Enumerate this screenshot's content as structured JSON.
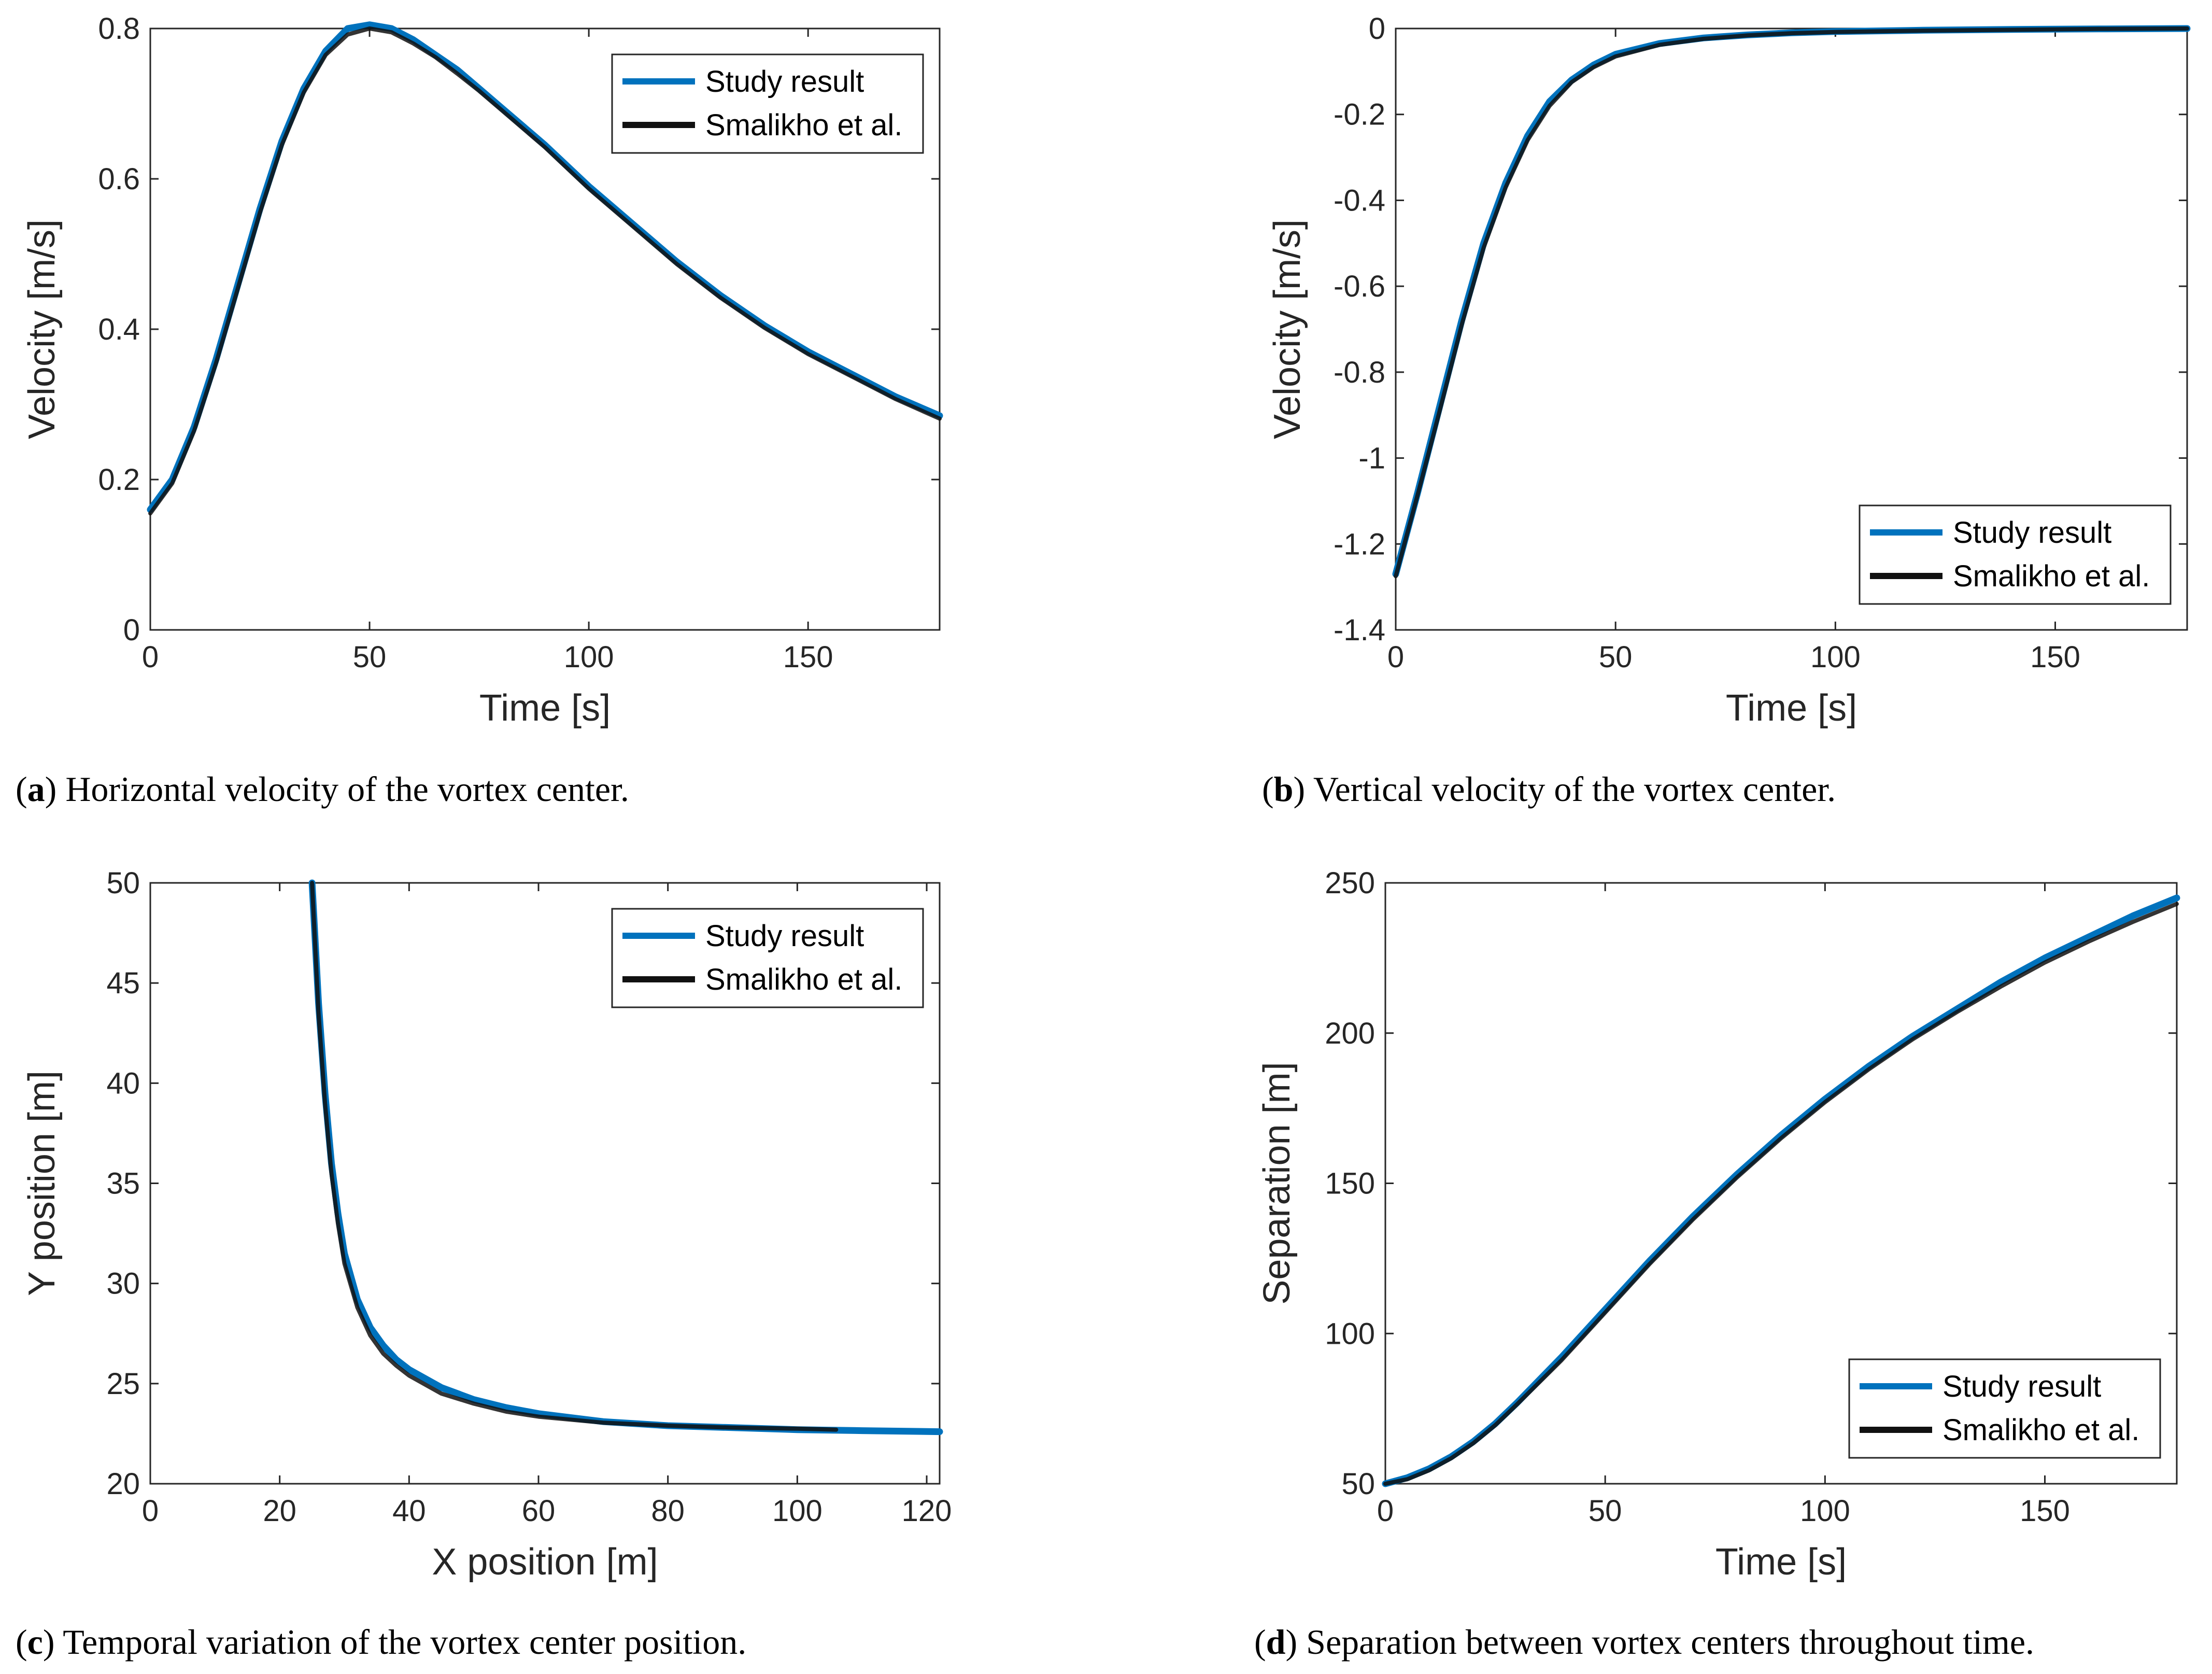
{
  "colors": {
    "study": "#0072BD",
    "smalikho": "#111111",
    "axis": "#262626"
  },
  "chart_data": [
    {
      "id": "a",
      "type": "line",
      "caption_letter": "a",
      "caption_text": " Horizontal velocity of the vortex center.",
      "xlabel": "Time [s]",
      "ylabel": "Velocity [m/s]",
      "xlim": [
        0,
        180
      ],
      "ylim": [
        0,
        0.8
      ],
      "xticks": [
        0,
        50,
        100,
        150
      ],
      "xtick_labels": [
        "0",
        "50",
        "100",
        "150"
      ],
      "yticks": [
        0,
        0.2,
        0.4,
        0.6,
        0.8
      ],
      "ytick_labels": [
        "0",
        "0.2",
        "0.4",
        "0.6",
        "0.8"
      ],
      "legend": [
        "Study result",
        "Smalikho et al."
      ],
      "legend_position": "top-right",
      "series": [
        {
          "name": "Study result",
          "x": [
            0,
            5,
            10,
            15,
            20,
            25,
            30,
            35,
            40,
            45,
            50,
            55,
            60,
            65,
            70,
            75,
            80,
            90,
            100,
            110,
            120,
            130,
            140,
            150,
            160,
            170,
            180
          ],
          "y": [
            0.16,
            0.2,
            0.27,
            0.36,
            0.46,
            0.56,
            0.65,
            0.72,
            0.77,
            0.8,
            0.805,
            0.8,
            0.785,
            0.765,
            0.745,
            0.72,
            0.695,
            0.645,
            0.59,
            0.54,
            0.49,
            0.445,
            0.405,
            0.37,
            0.34,
            0.31,
            0.285
          ]
        },
        {
          "name": "Smalikho et al.",
          "x": [
            0,
            5,
            10,
            15,
            20,
            25,
            30,
            35,
            40,
            45,
            50,
            55,
            60,
            65,
            70,
            75,
            80,
            90,
            100,
            110,
            120,
            130,
            140,
            150,
            160,
            170,
            180
          ],
          "y": [
            0.155,
            0.195,
            0.265,
            0.355,
            0.455,
            0.555,
            0.645,
            0.715,
            0.765,
            0.792,
            0.8,
            0.795,
            0.78,
            0.762,
            0.74,
            0.717,
            0.692,
            0.642,
            0.587,
            0.537,
            0.487,
            0.442,
            0.402,
            0.367,
            0.337,
            0.307,
            0.281
          ]
        }
      ]
    },
    {
      "id": "b",
      "type": "line",
      "caption_letter": "b",
      "caption_text": " Vertical velocity of the vortex center.",
      "xlabel": "Time [s]",
      "ylabel": "Velocity [m/s]",
      "xlim": [
        0,
        180
      ],
      "ylim": [
        -1.4,
        0
      ],
      "xticks": [
        0,
        50,
        100,
        150
      ],
      "xtick_labels": [
        "0",
        "50",
        "100",
        "150"
      ],
      "yticks": [
        -1.4,
        -1.2,
        -1,
        -0.8,
        -0.6,
        -0.4,
        -0.2,
        0
      ],
      "ytick_labels": [
        "-1.4",
        "-1.2",
        "-1",
        "-0.8",
        "-0.6",
        "-0.4",
        "-0.2",
        "0"
      ],
      "legend": [
        "Study result",
        "Smalikho et al."
      ],
      "legend_position": "bottom-right",
      "series": [
        {
          "name": "Study result",
          "x": [
            0,
            5,
            10,
            15,
            20,
            25,
            30,
            35,
            40,
            45,
            50,
            60,
            70,
            80,
            90,
            100,
            120,
            140,
            160,
            180
          ],
          "y": [
            -1.27,
            -1.08,
            -0.88,
            -0.68,
            -0.5,
            -0.36,
            -0.25,
            -0.17,
            -0.12,
            -0.085,
            -0.06,
            -0.035,
            -0.022,
            -0.015,
            -0.01,
            -0.007,
            -0.004,
            -0.002,
            -0.001,
            0
          ]
        },
        {
          "name": "Smalikho et al.",
          "x": [
            0,
            5,
            10,
            15,
            20,
            25,
            30,
            35,
            40,
            45,
            50,
            60,
            70,
            80,
            90,
            100,
            120,
            140,
            160,
            180
          ],
          "y": [
            -1.275,
            -1.085,
            -0.89,
            -0.69,
            -0.51,
            -0.37,
            -0.26,
            -0.18,
            -0.125,
            -0.09,
            -0.065,
            -0.038,
            -0.024,
            -0.016,
            -0.011,
            -0.008,
            -0.005,
            -0.003,
            -0.001,
            0
          ]
        }
      ]
    },
    {
      "id": "c",
      "type": "line",
      "caption_letter": "c",
      "caption_text": " Temporal variation of the vortex center position.",
      "xlabel": "X position [m]",
      "ylabel": "Y position [m]",
      "xlim": [
        0,
        122
      ],
      "ylim": [
        20,
        50
      ],
      "xticks": [
        0,
        20,
        40,
        60,
        80,
        100,
        120
      ],
      "xtick_labels": [
        "0",
        "20",
        "40",
        "60",
        "80",
        "100",
        "120"
      ],
      "yticks": [
        20,
        25,
        30,
        35,
        40,
        45,
        50
      ],
      "ytick_labels": [
        "20",
        "25",
        "30",
        "35",
        "40",
        "45",
        "50"
      ],
      "legend": [
        "Study result",
        "Smalikho et al."
      ],
      "legend_position": "top-right",
      "series": [
        {
          "name": "Study result",
          "x": [
            25,
            26,
            27,
            28,
            29,
            30,
            32,
            34,
            36,
            38,
            40,
            45,
            50,
            55,
            60,
            70,
            80,
            90,
            100,
            110,
            122
          ],
          "y": [
            50,
            44,
            39.5,
            36,
            33.5,
            31.5,
            29.2,
            27.8,
            26.9,
            26.2,
            25.7,
            24.8,
            24.2,
            23.8,
            23.5,
            23.1,
            22.9,
            22.8,
            22.7,
            22.65,
            22.6
          ]
        },
        {
          "name": "Smalikho et al.",
          "x": [
            25,
            26,
            27,
            28,
            29,
            30,
            32,
            34,
            36,
            38,
            40,
            45,
            50,
            55,
            60,
            70,
            80,
            90,
            100,
            106
          ],
          "y": [
            50,
            43.5,
            39,
            35.5,
            33,
            31,
            28.8,
            27.4,
            26.5,
            25.9,
            25.4,
            24.5,
            24,
            23.6,
            23.35,
            23.05,
            22.9,
            22.8,
            22.75,
            22.7
          ]
        }
      ]
    },
    {
      "id": "d",
      "type": "line",
      "caption_letter": "d",
      "caption_text": " Separation between vortex centers throughout time.",
      "xlabel": "Time [s]",
      "ylabel": "Separation [m]",
      "xlim": [
        0,
        180
      ],
      "ylim": [
        50,
        250
      ],
      "xticks": [
        0,
        50,
        100,
        150
      ],
      "xtick_labels": [
        "0",
        "50",
        "100",
        "150"
      ],
      "yticks": [
        50,
        100,
        150,
        200,
        250
      ],
      "ytick_labels": [
        "50",
        "100",
        "150",
        "200",
        "250"
      ],
      "legend": [
        "Study result",
        "Smalikho et al."
      ],
      "legend_position": "bottom-right",
      "series": [
        {
          "name": "Study result",
          "x": [
            0,
            5,
            10,
            15,
            20,
            25,
            30,
            40,
            50,
            60,
            70,
            80,
            90,
            100,
            110,
            120,
            130,
            140,
            150,
            160,
            170,
            180
          ],
          "y": [
            50,
            52,
            55,
            59,
            64,
            70,
            77,
            92,
            108,
            124,
            139,
            153,
            166,
            178,
            189,
            199,
            208,
            217,
            225,
            232,
            239,
            245
          ]
        },
        {
          "name": "Smalikho et al.",
          "x": [
            0,
            5,
            10,
            15,
            20,
            25,
            30,
            40,
            50,
            60,
            70,
            80,
            90,
            100,
            110,
            120,
            130,
            140,
            150,
            160,
            170,
            180
          ],
          "y": [
            50,
            51.5,
            54.5,
            58.5,
            63.5,
            69.5,
            76.5,
            91,
            107,
            123,
            138,
            152,
            165,
            177,
            188,
            198,
            207,
            215.5,
            223.5,
            230.5,
            237,
            243
          ]
        }
      ]
    }
  ]
}
